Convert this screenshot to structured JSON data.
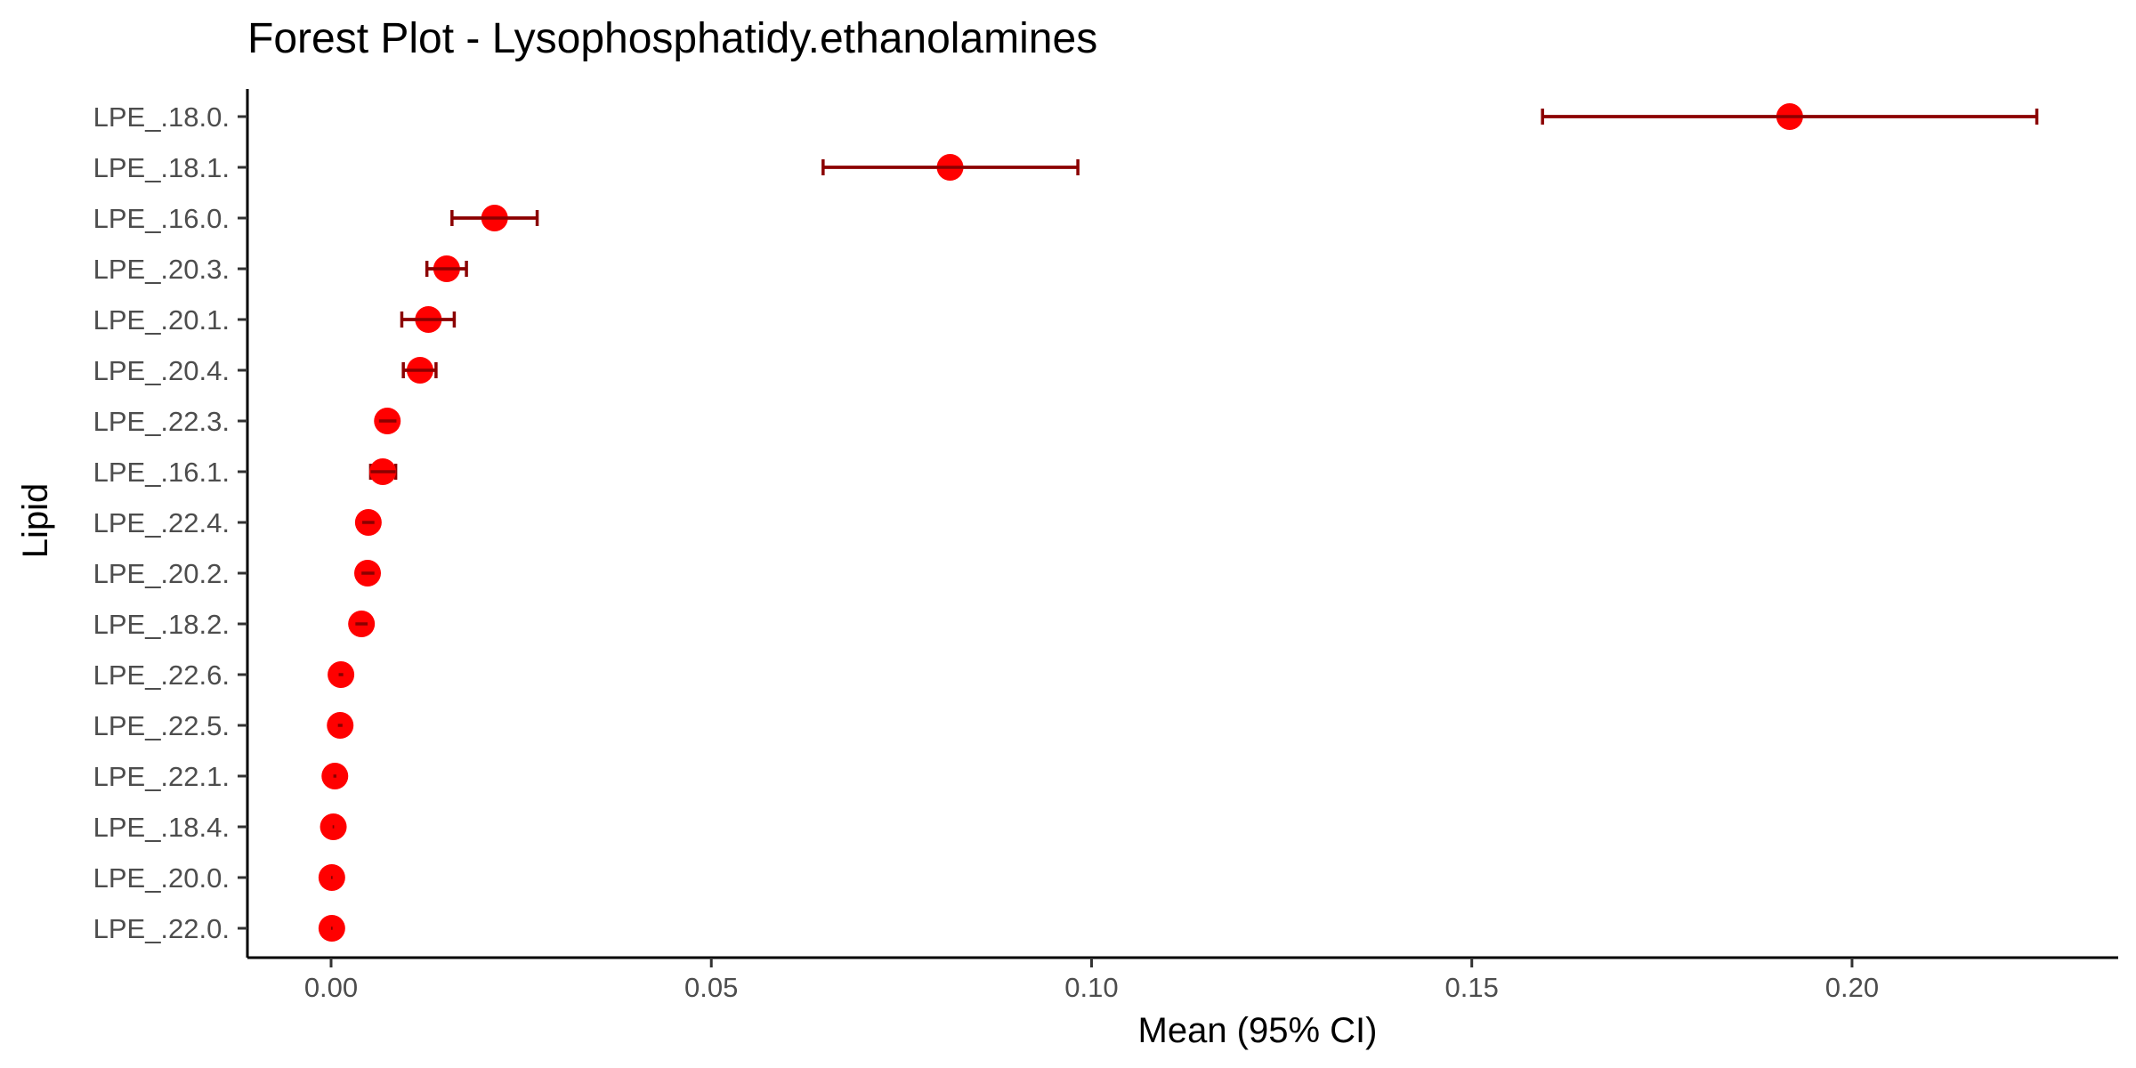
{
  "chart_data": {
    "type": "scatter",
    "title": "Forest Plot - Lysophosphatidy.ethanolamines",
    "xlabel": "Mean (95% CI)",
    "ylabel": "Lipid",
    "xlim": [
      -0.011,
      0.235
    ],
    "xticks": [
      0,
      0.05,
      0.1,
      0.15,
      0.2
    ],
    "xtick_labels": [
      "0.00",
      "0.05",
      "0.10",
      "0.15",
      "0.20"
    ],
    "grid": false,
    "legend": "none",
    "point_color": "#ff0000",
    "errorbar_color": "#8b0000",
    "points": [
      {
        "label": "LPE_.18.0.",
        "mean": 0.1918,
        "lower": 0.1593,
        "upper": 0.2243
      },
      {
        "label": "LPE_.18.1.",
        "mean": 0.0814,
        "lower": 0.0647,
        "upper": 0.0982
      },
      {
        "label": "LPE_.16.0.",
        "mean": 0.0215,
        "lower": 0.0159,
        "upper": 0.0271
      },
      {
        "label": "LPE_.20.3.",
        "mean": 0.0152,
        "lower": 0.0126,
        "upper": 0.0178
      },
      {
        "label": "LPE_.20.1.",
        "mean": 0.0128,
        "lower": 0.0093,
        "upper": 0.0162
      },
      {
        "label": "LPE_.20.4.",
        "mean": 0.0117,
        "lower": 0.0095,
        "upper": 0.0138
      },
      {
        "label": "LPE_.22.3.",
        "mean": 0.0074,
        "lower": 0.0063,
        "upper": 0.0086
      },
      {
        "label": "LPE_.16.1.",
        "mean": 0.0068,
        "lower": 0.0052,
        "upper": 0.0085
      },
      {
        "label": "LPE_.22.4.",
        "mean": 0.0049,
        "lower": 0.0041,
        "upper": 0.0057
      },
      {
        "label": "LPE_.20.2.",
        "mean": 0.0048,
        "lower": 0.004,
        "upper": 0.0057
      },
      {
        "label": "LPE_.18.2.",
        "mean": 0.004,
        "lower": 0.0032,
        "upper": 0.0048
      },
      {
        "label": "LPE_.22.6.",
        "mean": 0.0013,
        "lower": 0.001,
        "upper": 0.0016
      },
      {
        "label": "LPE_.22.5.",
        "mean": 0.0012,
        "lower": 0.0009,
        "upper": 0.0015
      },
      {
        "label": "LPE_.22.1.",
        "mean": 0.0005,
        "lower": 0.0003,
        "upper": 0.0007
      },
      {
        "label": "LPE_.18.4.",
        "mean": 0.0003,
        "lower": 0.0002,
        "upper": 0.0004
      },
      {
        "label": "LPE_.20.0.",
        "mean": 0.0001,
        "lower": 0.0,
        "upper": 0.0002
      },
      {
        "label": "LPE_.22.0.",
        "mean": 0.0001,
        "lower": 0.0,
        "upper": 0.0002
      }
    ]
  }
}
